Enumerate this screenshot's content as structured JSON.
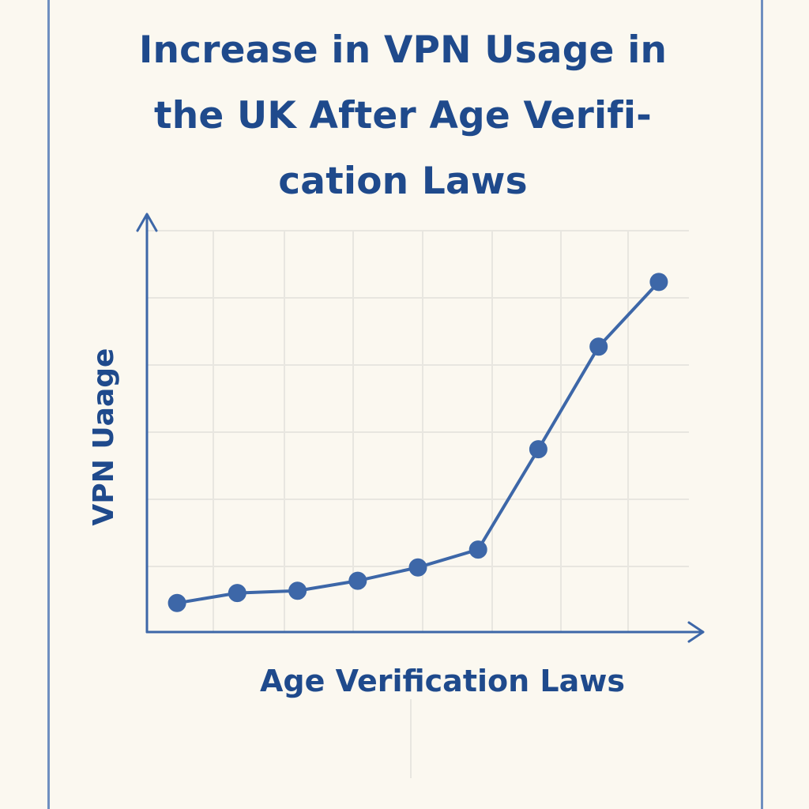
{
  "colors": {
    "background": "#fbf8f0",
    "frame": "#6f8fc0",
    "accent": "#1f4a8c",
    "series": "#3d67a8",
    "grid": "#e8e6e0"
  },
  "chart_data": {
    "type": "line",
    "title_lines": [
      "Increase in VPN Usage in",
      "the UK After Age Verifi-",
      "cation Laws"
    ],
    "xlabel": "Age Verification Laws",
    "ylabel": "VPN Uaage",
    "x": [
      1,
      2,
      3,
      4,
      5,
      6,
      7,
      8,
      9
    ],
    "series": [
      {
        "values": [
          0.3,
          0.75,
          0.85,
          1.3,
          1.9,
          2.7,
          7.2,
          11.8,
          14.7
        ]
      }
    ],
    "xlim": [
      0.5,
      9.5
    ],
    "ylim": [
      -1,
      17
    ],
    "grid": true,
    "legend": "none",
    "markers": true
  }
}
